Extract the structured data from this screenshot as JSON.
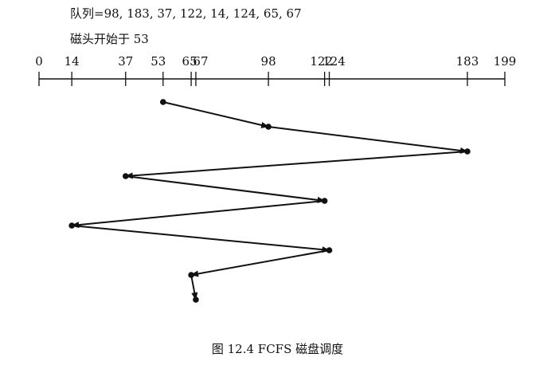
{
  "header": {
    "queue_label": "队列=98, 183, 37, 122, 14, 124, 65, 67",
    "head_label": "磁头开始于 53"
  },
  "diagram": {
    "axis_min": 0,
    "axis_max": 199,
    "tick_values": [
      0,
      14,
      37,
      53,
      65,
      67,
      98,
      122,
      124,
      183,
      199
    ],
    "service_order": [
      53,
      98,
      183,
      37,
      122,
      14,
      124,
      65,
      67
    ],
    "colors": {
      "line": "#111111",
      "point": "#111111"
    }
  },
  "caption": "图 12.4  FCFS 磁盘调度"
}
